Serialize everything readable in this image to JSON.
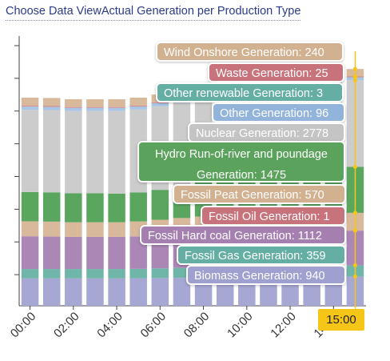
{
  "header": {
    "title": "Choose Data ViewActual Generation per Production Type"
  },
  "tooltip_time": "15:00",
  "chart_data": {
    "type": "bar",
    "stacked": true,
    "grid": false,
    "xlabel": "",
    "ylabel": "",
    "x_tick_labels": [
      "00:00",
      "02:00",
      "04:00",
      "06:00",
      "08:00",
      "10:00",
      "12:00",
      "14:00"
    ],
    "categories": [
      "00:00",
      "01:00",
      "02:00",
      "03:00",
      "04:00",
      "05:00",
      "06:00",
      "07:00",
      "08:00",
      "09:00",
      "10:00",
      "11:00",
      "12:00",
      "13:00",
      "14:00",
      "15:00"
    ],
    "ylim": [
      0,
      8400
    ],
    "y_tick_count": 8,
    "series": [
      {
        "name": "Biomass Generation",
        "color": "#a6a7d3",
        "values": [
          880,
          880,
          880,
          880,
          880,
          885,
          890,
          895,
          900,
          905,
          910,
          915,
          920,
          925,
          935,
          940
        ]
      },
      {
        "name": "Fossil Gas Generation",
        "color": "#6fb6a8",
        "values": [
          300,
          300,
          300,
          300,
          300,
          300,
          310,
          320,
          330,
          335,
          340,
          345,
          350,
          355,
          358,
          359
        ]
      },
      {
        "name": "Fossil Hard coal Generation",
        "color": "#ab87b6",
        "values": [
          1050,
          1040,
          1030,
          1030,
          1030,
          1040,
          1060,
          1080,
          1090,
          1095,
          1100,
          1105,
          1108,
          1110,
          1111,
          1112
        ]
      },
      {
        "name": "Fossil Oil Generation",
        "color": "#cf7d87",
        "values": [
          1,
          1,
          1,
          1,
          1,
          1,
          1,
          1,
          1,
          1,
          1,
          1,
          1,
          1,
          1,
          1
        ]
      },
      {
        "name": "Fossil Peat Generation",
        "color": "#d9b99b",
        "values": [
          480,
          480,
          470,
          470,
          470,
          480,
          500,
          520,
          540,
          550,
          555,
          560,
          565,
          568,
          569,
          570
        ]
      },
      {
        "name": "Hydro Run-of-river and poundage Generation",
        "color": "#5aa65f",
        "values": [
          940,
          940,
          930,
          930,
          920,
          930,
          960,
          1000,
          1100,
          1200,
          1300,
          1380,
          1420,
          1450,
          1470,
          1475
        ]
      },
      {
        "name": "Nuclear Generation",
        "color": "#cccccc",
        "values": [
          2640,
          2640,
          2640,
          2640,
          2650,
          2660,
          2680,
          2700,
          2720,
          2740,
          2750,
          2760,
          2770,
          2775,
          2777,
          2778
        ]
      },
      {
        "name": "Other Generation",
        "color": "#a9c5e6",
        "values": [
          100,
          100,
          100,
          100,
          100,
          100,
          100,
          100,
          98,
          97,
          96,
          96,
          96,
          96,
          96,
          96
        ]
      },
      {
        "name": "Other renewable Generation",
        "color": "#8fc9c2",
        "values": [
          3,
          3,
          3,
          3,
          3,
          3,
          3,
          3,
          3,
          3,
          3,
          3,
          3,
          3,
          3,
          3
        ]
      },
      {
        "name": "Waste Generation",
        "color": "#cf7d87",
        "values": [
          25,
          25,
          25,
          25,
          25,
          25,
          25,
          25,
          25,
          25,
          25,
          25,
          25,
          25,
          25,
          25
        ]
      },
      {
        "name": "Wind Onshore Generation",
        "color": "#d9b99b",
        "values": [
          260,
          260,
          250,
          250,
          250,
          255,
          250,
          245,
          245,
          240,
          240,
          240,
          240,
          240,
          240,
          240
        ]
      }
    ],
    "tooltip_items": [
      {
        "label": "Wind Onshore Generation: 240",
        "color": "#d2b191"
      },
      {
        "label": "Waste Generation: 25",
        "color": "#c8727c"
      },
      {
        "label": "Other renewable Generation: 3",
        "color": "#65aea4"
      },
      {
        "label": "Other Generation: 96",
        "color": "#92b3da"
      },
      {
        "label": "Nuclear Generation: 2778",
        "color": "#c4c4c4"
      },
      {
        "label": "Hydro Run-of-river and poundage Generation: 1475",
        "color": "#5ba35d"
      },
      {
        "label": "Fossil Peat Generation: 570",
        "color": "#d2b191"
      },
      {
        "label": "Fossil Oil Generation: 1",
        "color": "#c8727c"
      },
      {
        "label": "Fossil Hard coal Generation: 1112",
        "color": "#a67fb1"
      },
      {
        "label": "Fossil Gas Generation: 359",
        "color": "#65aea4"
      },
      {
        "label": "Biomass Generation: 940",
        "color": "#9ea0cf"
      }
    ]
  }
}
